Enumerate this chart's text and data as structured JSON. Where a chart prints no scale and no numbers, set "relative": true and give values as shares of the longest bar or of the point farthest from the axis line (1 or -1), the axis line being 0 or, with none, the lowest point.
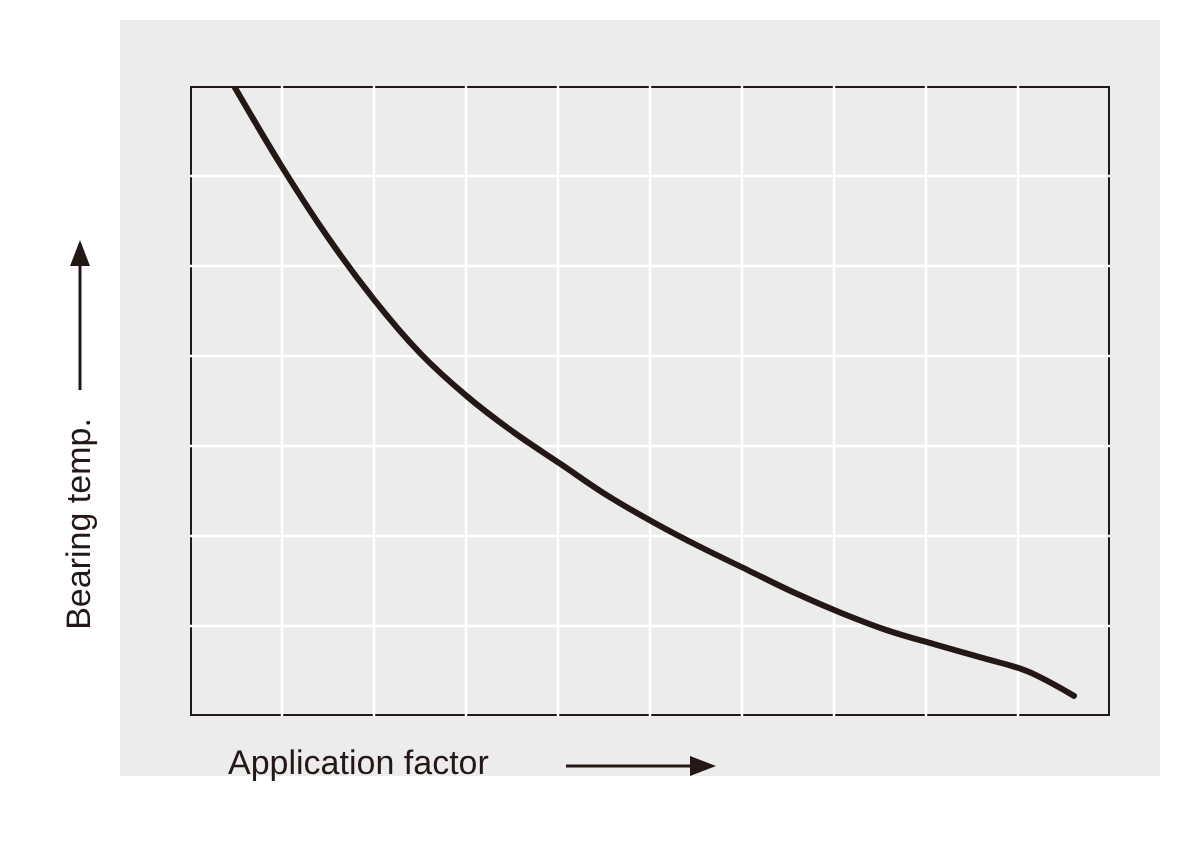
{
  "chart_data": {
    "type": "line",
    "xlabel": "Application factor",
    "ylabel": "Bearing temp.",
    "relative": true,
    "grid": true,
    "marker": "none",
    "line_style": "solid",
    "categories": [
      null,
      null,
      null,
      null,
      null,
      null,
      null,
      null,
      null,
      null,
      null,
      null,
      null,
      null,
      null,
      null,
      null,
      null,
      null
    ],
    "series": [
      {
        "color": "#231815",
        "values": [
          1,
          0.875,
          0.761,
          0.661,
          0.575,
          0.507,
          0.45,
          0.4,
          0.35,
          0.307,
          0.268,
          0.232,
          0.196,
          0.164,
          0.136,
          0.114,
          0.093,
          0.071,
          0.032
        ]
      }
    ]
  }
}
